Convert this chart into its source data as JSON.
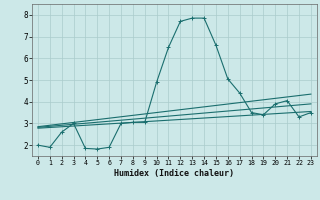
{
  "xlabel": "Humidex (Indice chaleur)",
  "background_color": "#cce8e8",
  "grid_color": "#aacccc",
  "line_color": "#1a6e6e",
  "xlim": [
    -0.5,
    23.5
  ],
  "ylim": [
    1.5,
    8.5
  ],
  "xticks": [
    0,
    1,
    2,
    3,
    4,
    5,
    6,
    7,
    8,
    9,
    10,
    11,
    12,
    13,
    14,
    15,
    16,
    17,
    18,
    19,
    20,
    21,
    22,
    23
  ],
  "yticks": [
    2,
    3,
    4,
    5,
    6,
    7,
    8
  ],
  "series": [
    {
      "x": [
        0,
        1,
        2,
        3,
        4,
        5,
        6,
        7,
        8,
        9,
        10,
        11,
        12,
        13,
        14,
        15,
        16,
        17,
        18,
        19,
        20,
        21,
        22,
        23
      ],
      "y": [
        2.0,
        1.9,
        2.6,
        3.0,
        1.85,
        1.82,
        1.9,
        3.0,
        3.05,
        3.05,
        4.9,
        6.5,
        7.7,
        7.85,
        7.85,
        6.6,
        5.05,
        4.4,
        3.5,
        3.4,
        3.9,
        4.05,
        3.3,
        3.5
      ],
      "marker": true
    },
    {
      "x": [
        0,
        23
      ],
      "y": [
        2.85,
        4.35
      ],
      "marker": false
    },
    {
      "x": [
        0,
        23
      ],
      "y": [
        2.82,
        3.9
      ],
      "marker": false
    },
    {
      "x": [
        0,
        23
      ],
      "y": [
        2.78,
        3.55
      ],
      "marker": false
    }
  ]
}
